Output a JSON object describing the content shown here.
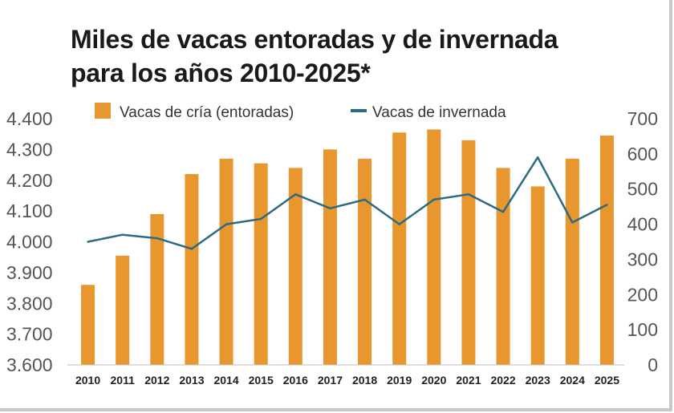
{
  "chart_data": {
    "type": "bar+line",
    "title_line1": "Miles de vacas entoradas y de invernada",
    "title_line2": "para los años 2010-2025*",
    "categories": [
      "2010",
      "2011",
      "2012",
      "2013",
      "2014",
      "2015",
      "2016",
      "2017",
      "2018",
      "2019",
      "2020",
      "2021",
      "2022",
      "2023",
      "2024",
      "2025"
    ],
    "series": [
      {
        "name": "Vacas de cría (entoradas)",
        "type": "bar",
        "axis": "left",
        "color": "#e8962e",
        "values": [
          3860,
          3955,
          4090,
          4220,
          4270,
          4255,
          4240,
          4300,
          4270,
          4355,
          4365,
          4330,
          4240,
          4180,
          4270,
          4345
        ]
      },
      {
        "name": "Vacas de invernada",
        "type": "line",
        "axis": "right",
        "color": "#2e6b80",
        "values": [
          350,
          370,
          360,
          330,
          400,
          415,
          485,
          445,
          470,
          400,
          470,
          485,
          435,
          590,
          405,
          455
        ]
      }
    ],
    "y_left": {
      "min": 3600,
      "max": 4400,
      "ticks": [
        "3.600",
        "3.700",
        "3.800",
        "3.900",
        "4.000",
        "4.100",
        "4.200",
        "4.300",
        "4.400"
      ]
    },
    "y_right": {
      "min": 0,
      "max": 700,
      "ticks": [
        "0",
        "100",
        "200",
        "300",
        "400",
        "500",
        "600",
        "700"
      ]
    },
    "legend_position": "top"
  }
}
